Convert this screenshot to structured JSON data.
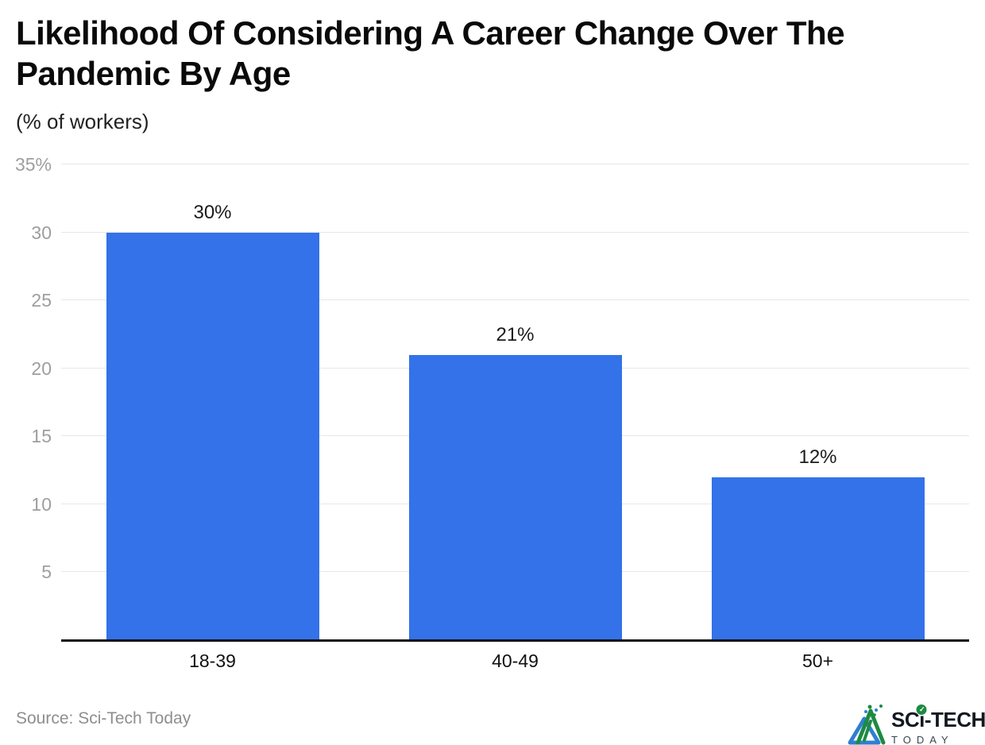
{
  "header": {
    "title": "Likelihood Of Considering A Career Change Over The Pandemic By Age",
    "subtitle": "(% of workers)"
  },
  "footer": {
    "source": "Source: Sci-Tech Today",
    "logo": {
      "brand_part1": "SC",
      "brand_part2": "ı",
      "brand_part3": "-TECH",
      "check_mark": "✓",
      "tagline": "TODAY"
    }
  },
  "colors": {
    "bar": "#3372e8",
    "grid_line": "#e7e7e7",
    "axis_line": "#111111",
    "y_tick_label": "#9e9e9e",
    "value_label": "#1b1b1b",
    "category_label": "#111111",
    "source_text": "#8e8e8e",
    "logo_blue": "#2f7fd0",
    "logo_green": "#1d8a42",
    "logo_text": "#101820"
  },
  "chart_data": {
    "type": "bar",
    "title": "Likelihood Of Considering A Career Change Over The Pandemic By Age",
    "subtitle": "(% of workers)",
    "categories": [
      "18-39",
      "40-49",
      "50+"
    ],
    "values": [
      30,
      21,
      12
    ],
    "value_labels": [
      "30%",
      "21%",
      "12%"
    ],
    "xlabel": "",
    "ylabel": "(% of workers)",
    "ylim": [
      0,
      35
    ],
    "yticks": [
      {
        "value": 5,
        "label": "5"
      },
      {
        "value": 10,
        "label": "10"
      },
      {
        "value": 15,
        "label": "15"
      },
      {
        "value": 20,
        "label": "20"
      },
      {
        "value": 25,
        "label": "25"
      },
      {
        "value": 30,
        "label": "30"
      },
      {
        "value": 35,
        "label": "35%"
      }
    ],
    "grid": true,
    "legend": false,
    "bar_color": "#3372e8",
    "source": "Source: Sci-Tech Today"
  }
}
